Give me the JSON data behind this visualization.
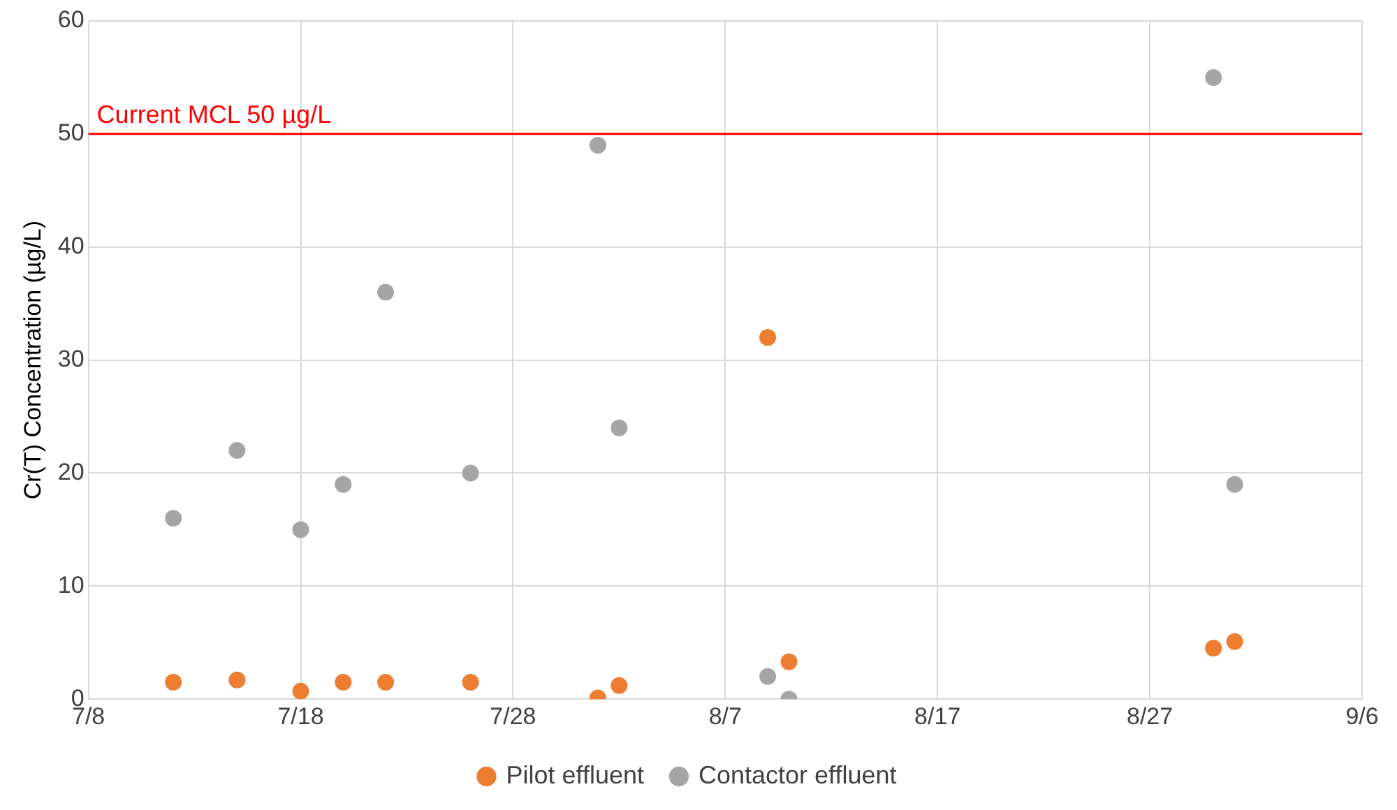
{
  "chart_data": {
    "type": "scatter",
    "ylabel": "Cr(T) Concentration (µg/L)",
    "xlim": [
      "--07-08",
      "--09-06"
    ],
    "xticks": [
      {
        "value": "--07-08",
        "label": "7/8"
      },
      {
        "value": "--07-18",
        "label": "7/18"
      },
      {
        "value": "--07-28",
        "label": "7/28"
      },
      {
        "value": "--08-07",
        "label": "8/7"
      },
      {
        "value": "--08-17",
        "label": "8/17"
      },
      {
        "value": "--08-27",
        "label": "8/27"
      },
      {
        "value": "--09-06",
        "label": "9/6"
      }
    ],
    "ylim": [
      0,
      60
    ],
    "yticks": [
      0,
      10,
      20,
      30,
      40,
      50,
      60
    ],
    "x": [
      "--07-12",
      "--07-15",
      "--07-18",
      "--07-20",
      "--07-22",
      "--07-26",
      "--08-01",
      "--08-02",
      "--08-09",
      "--08-10",
      "--08-30",
      "--08-31"
    ],
    "series": [
      {
        "name": "Pilot effluent",
        "color": "#ed7d31",
        "values": [
          1.5,
          1.7,
          0.7,
          1.5,
          1.5,
          1.5,
          0.1,
          1.2,
          32,
          3.3,
          4.5,
          5.1
        ]
      },
      {
        "name": "Contactor effluent",
        "color": "#a5a5a5",
        "values": [
          16,
          22,
          15,
          19,
          36,
          20,
          49,
          24,
          2,
          0,
          55,
          19
        ]
      }
    ],
    "ref_lines": [
      {
        "axis": "y",
        "value": 50,
        "label": "Current MCL 50 µg/L",
        "color": "#ff0000"
      }
    ],
    "grid": true,
    "legend": "bottom",
    "marker": "circle"
  }
}
